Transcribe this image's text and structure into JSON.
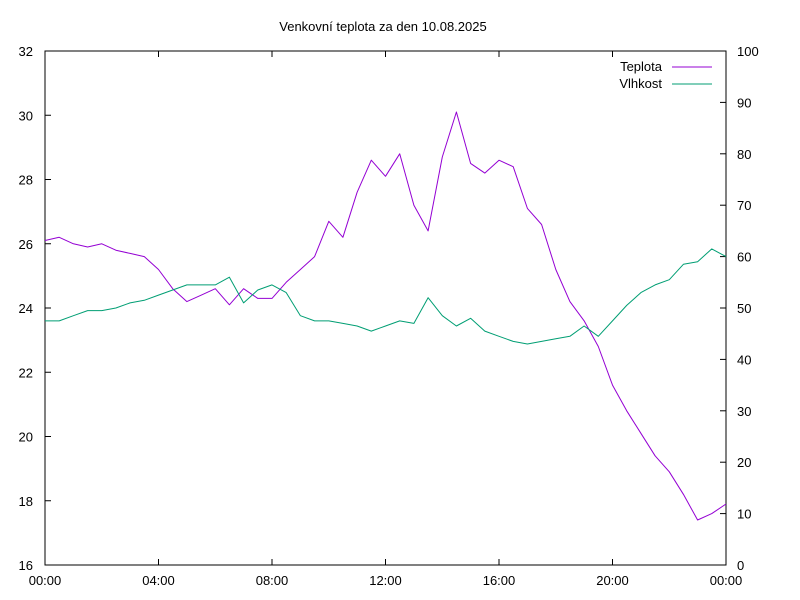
{
  "chart_data": {
    "type": "line",
    "title": "Venkovní teplota za den 10.08.2025",
    "xlabel": "",
    "ylabel": "",
    "y2label": "",
    "x_ticks": [
      "00:00",
      "04:00",
      "08:00",
      "12:00",
      "16:00",
      "20:00",
      "00:00"
    ],
    "x_range_hours": [
      0,
      24
    ],
    "ylim": [
      16,
      32
    ],
    "y_ticks": [
      16,
      18,
      20,
      22,
      24,
      26,
      28,
      30,
      32
    ],
    "y2lim": [
      0,
      100
    ],
    "y2_ticks": [
      0,
      10,
      20,
      30,
      40,
      50,
      60,
      70,
      80,
      90,
      100
    ],
    "grid": false,
    "legend_position": "top-right",
    "series": [
      {
        "name": "Teplota",
        "axis": "left",
        "color": "#9400d3",
        "x": [
          0,
          0.5,
          1,
          1.5,
          2,
          2.5,
          3,
          3.5,
          4,
          4.5,
          5,
          5.5,
          6,
          6.5,
          7,
          7.5,
          8,
          8.5,
          9,
          9.5,
          10,
          10.5,
          11,
          11.5,
          12,
          12.5,
          13,
          13.5,
          14,
          14.5,
          15,
          15.5,
          16,
          16.5,
          17,
          17.5,
          18,
          18.5,
          19,
          19.5,
          20,
          20.5,
          21,
          21.5,
          22,
          22.5,
          23,
          23.5,
          24
        ],
        "y": [
          26.1,
          26.2,
          26.0,
          25.9,
          26.0,
          25.8,
          25.7,
          25.6,
          25.2,
          24.6,
          24.2,
          24.4,
          24.6,
          24.1,
          24.6,
          24.3,
          24.3,
          24.8,
          25.2,
          25.6,
          26.7,
          26.2,
          27.6,
          28.6,
          28.1,
          28.8,
          27.2,
          26.4,
          28.7,
          30.1,
          28.5,
          28.2,
          28.6,
          28.4,
          27.1,
          26.6,
          25.2,
          24.2,
          23.6,
          22.8,
          21.6,
          20.8,
          20.1,
          19.4,
          18.9,
          18.2,
          17.4,
          17.6,
          17.9
        ]
      },
      {
        "name": "Vlhkost",
        "axis": "right",
        "color": "#009e73",
        "x": [
          0,
          0.5,
          1,
          1.5,
          2,
          2.5,
          3,
          3.5,
          4,
          4.5,
          5,
          5.5,
          6,
          6.5,
          7,
          7.5,
          8,
          8.5,
          9,
          9.5,
          10,
          10.5,
          11,
          11.5,
          12,
          12.5,
          13,
          13.5,
          14,
          14.5,
          15,
          15.5,
          16,
          16.5,
          17,
          17.5,
          18,
          18.5,
          19,
          19.5,
          20,
          20.5,
          21,
          21.5,
          22,
          22.5,
          23,
          23.5,
          24
        ],
        "y": [
          47.5,
          47.5,
          48.5,
          49.5,
          49.5,
          50.0,
          51.0,
          51.5,
          52.5,
          53.5,
          54.5,
          54.5,
          54.5,
          56.0,
          51.0,
          53.5,
          54.5,
          53.0,
          48.5,
          47.5,
          47.5,
          47.0,
          46.5,
          45.5,
          46.5,
          47.5,
          47.0,
          52.0,
          48.5,
          46.5,
          48.0,
          45.5,
          44.5,
          43.5,
          43.0,
          43.5,
          44.0,
          44.5,
          46.5,
          44.5,
          47.5,
          50.5,
          53.0,
          54.5,
          55.5,
          58.5,
          59.0,
          61.5,
          60.0
        ]
      }
    ]
  }
}
